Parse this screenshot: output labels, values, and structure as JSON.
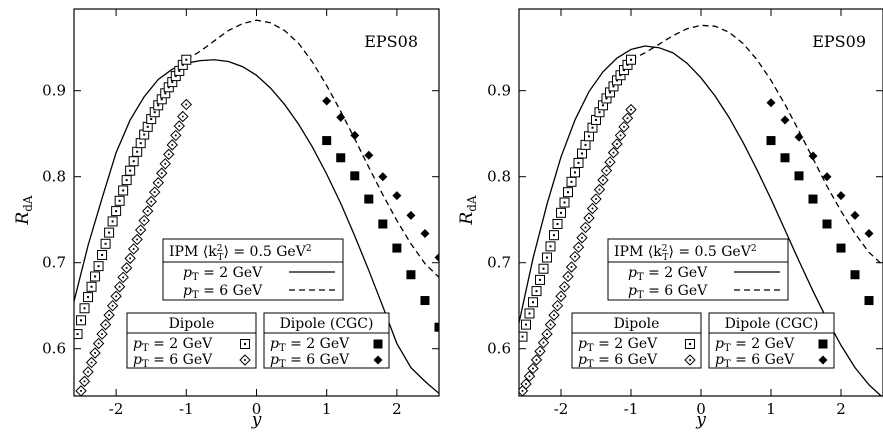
{
  "chart_data": [
    {
      "type": "line",
      "panel": "EPS08",
      "tag": "EPS08",
      "xlabel": "y",
      "ylabel": "R",
      "ylabel_sub": "dA",
      "xlim": [
        -2.6,
        2.6
      ],
      "ylim": [
        0.545,
        0.995
      ],
      "xticks": [
        -2,
        -1,
        0,
        1,
        2
      ],
      "xtick_labels": [
        "-2",
        "-1",
        "0",
        "1",
        "2"
      ],
      "yticks": [
        0.6,
        0.7,
        0.8,
        0.9
      ],
      "ytick_labels": [
        "0.6",
        "0.7",
        "0.8",
        "0.9"
      ],
      "legend_ipm": {
        "title_prefix": "IPM ⟨k",
        "title_sub": "T",
        "title_sup": "2",
        "title_suffix": "⟩ = 0.5 GeV",
        "title_unit_sup": "2",
        "items": [
          {
            "p": "p",
            "sub": "T",
            "text": " = 2 GeV"
          },
          {
            "p": "p",
            "sub": "T",
            "text": " = 6 GeV"
          }
        ]
      },
      "legend_dipole": {
        "title": "Dipole",
        "items": [
          {
            "p": "p",
            "sub": "T",
            "text": " = 2 GeV"
          },
          {
            "p": "p",
            "sub": "T",
            "text": " = 6 GeV"
          }
        ]
      },
      "legend_cgc": {
        "title": "Dipole (CGC)",
        "items": [
          {
            "p": "p",
            "sub": "T",
            "text": " = 2 GeV"
          },
          {
            "p": "p",
            "sub": "T",
            "text": " = 6 GeV"
          }
        ]
      },
      "series": [
        {
          "kind": "ipm_pt2",
          "style": "solid",
          "x": [
            -2.6,
            -2.4,
            -2.2,
            -2.0,
            -1.8,
            -1.6,
            -1.4,
            -1.2,
            -1.0,
            -0.8,
            -0.6,
            -0.4,
            -0.2,
            0.0,
            0.2,
            0.4,
            0.6,
            0.8,
            1.0,
            1.2,
            1.4,
            1.6,
            1.8,
            2.0,
            2.2,
            2.4,
            2.6
          ],
          "y": [
            0.655,
            0.72,
            0.775,
            0.828,
            0.866,
            0.893,
            0.913,
            0.925,
            0.932,
            0.935,
            0.936,
            0.934,
            0.928,
            0.918,
            0.903,
            0.884,
            0.861,
            0.834,
            0.803,
            0.769,
            0.731,
            0.691,
            0.649,
            0.606,
            0.578,
            0.562,
            0.548
          ]
        },
        {
          "kind": "ipm_pt6",
          "style": "dashed",
          "x": [
            -1.0,
            -0.8,
            -0.6,
            -0.4,
            -0.2,
            0.0,
            0.2,
            0.4,
            0.6,
            0.8,
            1.0,
            1.2,
            1.4,
            1.6,
            1.8,
            2.0,
            2.2,
            2.4,
            2.6
          ],
          "y": [
            0.936,
            0.946,
            0.958,
            0.97,
            0.978,
            0.982,
            0.979,
            0.97,
            0.955,
            0.933,
            0.906,
            0.876,
            0.844,
            0.811,
            0.779,
            0.749,
            0.722,
            0.699,
            0.683
          ]
        },
        {
          "kind": "dipole_pt2",
          "marker": "square-open",
          "x": [
            -2.55,
            -2.5,
            -2.45,
            -2.4,
            -2.35,
            -2.3,
            -2.25,
            -2.2,
            -2.15,
            -2.1,
            -2.05,
            -2.0,
            -1.95,
            -1.9,
            -1.85,
            -1.8,
            -1.75,
            -1.7,
            -1.65,
            -1.6,
            -1.55,
            -1.5,
            -1.45,
            -1.4,
            -1.35,
            -1.3,
            -1.25,
            -1.2,
            -1.15,
            -1.1,
            -1.05,
            -1.0
          ],
          "y": [
            0.617,
            0.633,
            0.647,
            0.66,
            0.672,
            0.684,
            0.696,
            0.709,
            0.722,
            0.735,
            0.748,
            0.76,
            0.772,
            0.784,
            0.796,
            0.807,
            0.818,
            0.829,
            0.839,
            0.849,
            0.858,
            0.867,
            0.875,
            0.883,
            0.89,
            0.897,
            0.904,
            0.91,
            0.917,
            0.923,
            0.93,
            0.936
          ]
        },
        {
          "kind": "dipole_pt6",
          "marker": "diamond-open",
          "x": [
            -2.5,
            -2.45,
            -2.4,
            -2.35,
            -2.3,
            -2.25,
            -2.2,
            -2.15,
            -2.1,
            -2.05,
            -2.0,
            -1.95,
            -1.9,
            -1.85,
            -1.8,
            -1.75,
            -1.7,
            -1.65,
            -1.6,
            -1.55,
            -1.5,
            -1.45,
            -1.4,
            -1.35,
            -1.3,
            -1.25,
            -1.2,
            -1.15,
            -1.1,
            -1.05,
            -1.0
          ],
          "y": [
            0.551,
            0.562,
            0.573,
            0.584,
            0.595,
            0.606,
            0.617,
            0.628,
            0.639,
            0.65,
            0.661,
            0.672,
            0.683,
            0.694,
            0.705,
            0.716,
            0.727,
            0.738,
            0.749,
            0.76,
            0.771,
            0.782,
            0.793,
            0.804,
            0.815,
            0.826,
            0.837,
            0.848,
            0.859,
            0.87,
            0.884
          ]
        },
        {
          "kind": "cgc_pt2",
          "marker": "square-filled",
          "x": [
            1.0,
            1.2,
            1.4,
            1.6,
            1.8,
            2.0,
            2.2,
            2.4,
            2.6
          ],
          "y": [
            0.842,
            0.822,
            0.801,
            0.774,
            0.745,
            0.717,
            0.686,
            0.656,
            0.625
          ]
        },
        {
          "kind": "cgc_pt6",
          "marker": "diamond-filled",
          "x": [
            1.0,
            1.2,
            1.4,
            1.6,
            1.8,
            2.0,
            2.2,
            2.4,
            2.6
          ],
          "y": [
            0.888,
            0.869,
            0.848,
            0.825,
            0.8,
            0.778,
            0.755,
            0.734,
            0.706
          ]
        }
      ]
    },
    {
      "type": "line",
      "panel": "EPS09",
      "tag": "EPS09",
      "xlabel": "y",
      "ylabel": "R",
      "ylabel_sub": "dA",
      "xlim": [
        -2.6,
        2.6
      ],
      "ylim": [
        0.545,
        0.995
      ],
      "xticks": [
        -2,
        -1,
        0,
        1,
        2
      ],
      "xtick_labels": [
        "-2",
        "-1",
        "0",
        "1",
        "2"
      ],
      "yticks": [
        0.6,
        0.7,
        0.8,
        0.9
      ],
      "ytick_labels": [
        "0.6",
        "0.7",
        "0.8",
        "0.9"
      ],
      "legend_ipm": {
        "title_prefix": "IPM ⟨k",
        "title_sub": "T",
        "title_sup": "2",
        "title_suffix": "⟩ = 0.5 GeV",
        "title_unit_sup": "2",
        "items": [
          {
            "p": "p",
            "sub": "T",
            "text": " = 2 GeV"
          },
          {
            "p": "p",
            "sub": "T",
            "text": " = 6 GeV"
          }
        ]
      },
      "legend_dipole": {
        "title": "Dipole",
        "items": [
          {
            "p": "p",
            "sub": "T",
            "text": " = 2 GeV"
          },
          {
            "p": "p",
            "sub": "T",
            "text": " = 6 GeV"
          }
        ]
      },
      "legend_cgc": {
        "title": "Dipole (CGC)",
        "items": [
          {
            "p": "p",
            "sub": "T",
            "text": " = 2 GeV"
          },
          {
            "p": "p",
            "sub": "T",
            "text": " = 6 GeV"
          }
        ]
      },
      "series": [
        {
          "kind": "ipm_pt2",
          "style": "solid",
          "x": [
            -2.6,
            -2.4,
            -2.2,
            -2.0,
            -1.8,
            -1.6,
            -1.4,
            -1.2,
            -1.0,
            -0.8,
            -0.6,
            -0.4,
            -0.2,
            0.0,
            0.2,
            0.4,
            0.6,
            0.8,
            1.0,
            1.2,
            1.4,
            1.6,
            1.8,
            2.0,
            2.2,
            2.4,
            2.6
          ],
          "y": [
            0.63,
            0.705,
            0.768,
            0.823,
            0.866,
            0.899,
            0.922,
            0.938,
            0.948,
            0.952,
            0.95,
            0.944,
            0.932,
            0.915,
            0.894,
            0.869,
            0.84,
            0.808,
            0.774,
            0.738,
            0.702,
            0.667,
            0.634,
            0.604,
            0.578,
            0.558,
            0.543
          ]
        },
        {
          "kind": "ipm_pt6",
          "style": "dashed",
          "x": [
            -1.0,
            -0.8,
            -0.6,
            -0.4,
            -0.2,
            0.0,
            0.2,
            0.4,
            0.6,
            0.8,
            1.0,
            1.2,
            1.4,
            1.6,
            1.8,
            2.0,
            2.2,
            2.4,
            2.6
          ],
          "y": [
            0.936,
            0.944,
            0.954,
            0.964,
            0.972,
            0.976,
            0.975,
            0.968,
            0.955,
            0.936,
            0.912,
            0.884,
            0.853,
            0.821,
            0.789,
            0.76,
            0.734,
            0.712,
            0.697
          ]
        },
        {
          "kind": "dipole_pt2",
          "marker": "square-open",
          "x": [
            -2.55,
            -2.5,
            -2.45,
            -2.4,
            -2.35,
            -2.3,
            -2.25,
            -2.2,
            -2.15,
            -2.1,
            -2.05,
            -2.0,
            -1.95,
            -1.9,
            -1.85,
            -1.8,
            -1.75,
            -1.7,
            -1.65,
            -1.6,
            -1.55,
            -1.5,
            -1.45,
            -1.4,
            -1.35,
            -1.3,
            -1.25,
            -1.2,
            -1.15,
            -1.1,
            -1.05,
            -1.0
          ],
          "y": [
            0.614,
            0.628,
            0.641,
            0.654,
            0.667,
            0.68,
            0.693,
            0.706,
            0.719,
            0.732,
            0.745,
            0.758,
            0.77,
            0.782,
            0.794,
            0.805,
            0.816,
            0.827,
            0.837,
            0.847,
            0.857,
            0.866,
            0.875,
            0.883,
            0.891,
            0.898,
            0.905,
            0.912,
            0.918,
            0.924,
            0.93,
            0.936
          ]
        },
        {
          "kind": "dipole_pt6",
          "marker": "diamond-open",
          "x": [
            -2.55,
            -2.5,
            -2.45,
            -2.4,
            -2.35,
            -2.3,
            -2.25,
            -2.2,
            -2.15,
            -2.1,
            -2.05,
            -2.0,
            -1.95,
            -1.9,
            -1.85,
            -1.8,
            -1.75,
            -1.7,
            -1.65,
            -1.6,
            -1.55,
            -1.5,
            -1.45,
            -1.4,
            -1.35,
            -1.3,
            -1.25,
            -1.2,
            -1.15,
            -1.1,
            -1.05,
            -1.0
          ],
          "y": [
            0.551,
            0.559,
            0.568,
            0.577,
            0.587,
            0.597,
            0.607,
            0.617,
            0.628,
            0.639,
            0.65,
            0.661,
            0.672,
            0.684,
            0.695,
            0.707,
            0.718,
            0.729,
            0.741,
            0.752,
            0.763,
            0.774,
            0.785,
            0.796,
            0.807,
            0.817,
            0.828,
            0.838,
            0.848,
            0.858,
            0.868,
            0.878
          ]
        },
        {
          "kind": "cgc_pt2",
          "marker": "square-filled",
          "x": [
            1.0,
            1.2,
            1.4,
            1.6,
            1.8,
            2.0,
            2.2,
            2.4
          ],
          "y": [
            0.842,
            0.822,
            0.801,
            0.774,
            0.745,
            0.717,
            0.686,
            0.656
          ]
        },
        {
          "kind": "cgc_pt6",
          "marker": "diamond-filled",
          "x": [
            1.0,
            1.2,
            1.4,
            1.6,
            1.8,
            2.0,
            2.2,
            2.4
          ],
          "y": [
            0.886,
            0.866,
            0.846,
            0.824,
            0.8,
            0.778,
            0.755,
            0.734
          ]
        }
      ]
    }
  ]
}
